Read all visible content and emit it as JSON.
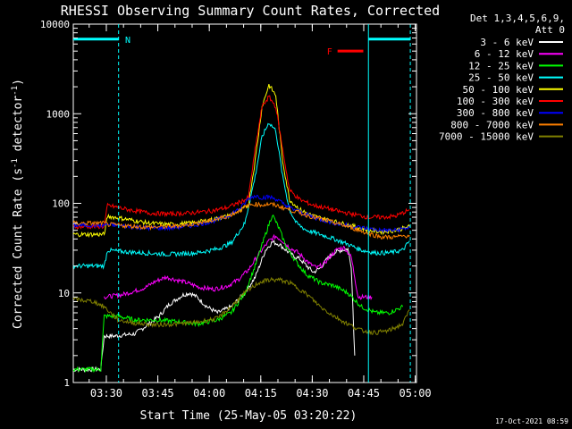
{
  "chart_data": {
    "type": "line",
    "title": "RHESSI Observing Summary Count Rates, Corrected",
    "xlabel": "Start Time (25-May-05 03:20:22)",
    "ylabel_main": "Corrected Count Rate (s",
    "ylabel_sup1": "-1",
    "ylabel_mid": " detector",
    "ylabel_sup2": "-1",
    "ylabel_end": ")",
    "footer_date": "17-Oct-2021 08:59",
    "y_scale": "log",
    "ylim": [
      1,
      10000
    ],
    "xlim_minutes": [
      0,
      100
    ],
    "x_ticks": [
      {
        "label": "03:30",
        "minutes": 9.63
      },
      {
        "label": "03:45",
        "minutes": 24.63
      },
      {
        "label": "04:00",
        "minutes": 39.63
      },
      {
        "label": "04:15",
        "minutes": 54.63
      },
      {
        "label": "04:30",
        "minutes": 69.63
      },
      {
        "label": "04:45",
        "minutes": 84.63
      },
      {
        "label": "05:00",
        "minutes": 99.63
      }
    ],
    "y_ticks": [
      {
        "label": "1",
        "value": 1
      },
      {
        "label": "10",
        "value": 10
      },
      {
        "label": "100",
        "value": 100
      },
      {
        "label": "1000",
        "value": 1000
      },
      {
        "label": "10000",
        "value": 10000
      }
    ],
    "legend": {
      "header_line1": "Det 1,3,4,5,6,9,",
      "header_line2": "Att 0",
      "placement": "right"
    },
    "annotations": {
      "n_label": "N",
      "f_label": "F",
      "cyan_color": "#00ffff",
      "flare_color": "#ff0000"
    },
    "series": [
      {
        "name": "3 - 6 keV",
        "color": "#ffffff",
        "points": [
          [
            0,
            1.4
          ],
          [
            8,
            1.4
          ],
          [
            9,
            3.3
          ],
          [
            12,
            3.3
          ],
          [
            18,
            3.5
          ],
          [
            22,
            4.5
          ],
          [
            25,
            5.5
          ],
          [
            28,
            7.5
          ],
          [
            32,
            9.5
          ],
          [
            34,
            10
          ],
          [
            36,
            9
          ],
          [
            39,
            7
          ],
          [
            42,
            6
          ],
          [
            46,
            7
          ],
          [
            50,
            10
          ],
          [
            53,
            15
          ],
          [
            56,
            30
          ],
          [
            58,
            37
          ],
          [
            60,
            35
          ],
          [
            62,
            30
          ],
          [
            64,
            26
          ],
          [
            66,
            24
          ],
          [
            68,
            20
          ],
          [
            70,
            17
          ],
          [
            72,
            19
          ],
          [
            74,
            24
          ],
          [
            76,
            28
          ],
          [
            78,
            30
          ],
          [
            80,
            31
          ],
          [
            81,
            20
          ],
          [
            82,
            2
          ]
        ]
      },
      {
        "name": "6 - 12 keV",
        "color": "#ff00ff",
        "points": [
          [
            9,
            9
          ],
          [
            14,
            9.5
          ],
          [
            18,
            10.5
          ],
          [
            21,
            11.5
          ],
          [
            24,
            13.5
          ],
          [
            27,
            15
          ],
          [
            30,
            14
          ],
          [
            33,
            13
          ],
          [
            37,
            11.5
          ],
          [
            41,
            11
          ],
          [
            45,
            12
          ],
          [
            48,
            14
          ],
          [
            51,
            18
          ],
          [
            54,
            27
          ],
          [
            57,
            38
          ],
          [
            59,
            43
          ],
          [
            61,
            38
          ],
          [
            63,
            32
          ],
          [
            65,
            29
          ],
          [
            67,
            25
          ],
          [
            69,
            21
          ],
          [
            71,
            19
          ],
          [
            73,
            21
          ],
          [
            75,
            26
          ],
          [
            77,
            31
          ],
          [
            79,
            32
          ],
          [
            81,
            25
          ],
          [
            82,
            15
          ],
          [
            83,
            9
          ],
          [
            87,
            9
          ]
        ]
      },
      {
        "name": "12 - 25 keV",
        "color": "#00ff00",
        "points": [
          [
            0,
            1.4
          ],
          [
            8,
            1.4
          ],
          [
            9,
            5.5
          ],
          [
            13,
            5.5
          ],
          [
            18,
            5
          ],
          [
            24,
            5
          ],
          [
            30,
            4.8
          ],
          [
            36,
            4.5
          ],
          [
            42,
            5
          ],
          [
            46,
            6
          ],
          [
            50,
            10
          ],
          [
            53,
            20
          ],
          [
            56,
            45
          ],
          [
            58,
            75
          ],
          [
            60,
            52
          ],
          [
            62,
            33
          ],
          [
            65,
            22
          ],
          [
            68,
            16
          ],
          [
            72,
            13
          ],
          [
            76,
            12
          ],
          [
            80,
            10
          ],
          [
            84,
            7
          ],
          [
            88,
            6
          ],
          [
            92,
            6
          ],
          [
            96,
            7
          ]
        ]
      },
      {
        "name": "25 - 50 keV",
        "color": "#00ffff",
        "points": [
          [
            0,
            20
          ],
          [
            9,
            20
          ],
          [
            10,
            30
          ],
          [
            14,
            29
          ],
          [
            20,
            28
          ],
          [
            28,
            27
          ],
          [
            36,
            28
          ],
          [
            42,
            31
          ],
          [
            46,
            36
          ],
          [
            50,
            60
          ],
          [
            53,
            200
          ],
          [
            55,
            550
          ],
          [
            57,
            800
          ],
          [
            59,
            650
          ],
          [
            61,
            200
          ],
          [
            63,
            85
          ],
          [
            65,
            60
          ],
          [
            68,
            50
          ],
          [
            72,
            45
          ],
          [
            76,
            40
          ],
          [
            80,
            35
          ],
          [
            84,
            30
          ],
          [
            88,
            28
          ],
          [
            92,
            28
          ],
          [
            96,
            30
          ],
          [
            98,
            38
          ]
        ]
      },
      {
        "name": "50 - 100 keV",
        "color": "#ffff00",
        "points": [
          [
            0,
            45
          ],
          [
            9,
            45
          ],
          [
            10,
            72
          ],
          [
            16,
            66
          ],
          [
            22,
            60
          ],
          [
            28,
            58
          ],
          [
            34,
            60
          ],
          [
            40,
            65
          ],
          [
            45,
            72
          ],
          [
            49,
            85
          ],
          [
            51,
            95
          ],
          [
            53,
            300
          ],
          [
            55,
            1200
          ],
          [
            57,
            2100
          ],
          [
            59,
            1600
          ],
          [
            61,
            300
          ],
          [
            63,
            110
          ],
          [
            66,
            85
          ],
          [
            70,
            72
          ],
          [
            74,
            66
          ],
          [
            78,
            60
          ],
          [
            82,
            55
          ],
          [
            86,
            50
          ],
          [
            90,
            48
          ],
          [
            94,
            50
          ],
          [
            98,
            55
          ]
        ]
      },
      {
        "name": "100 - 300 keV",
        "color": "#ff0000",
        "points": [
          [
            0,
            55
          ],
          [
            9,
            55
          ],
          [
            10,
            95
          ],
          [
            16,
            85
          ],
          [
            22,
            78
          ],
          [
            28,
            76
          ],
          [
            34,
            78
          ],
          [
            40,
            82
          ],
          [
            45,
            90
          ],
          [
            49,
            105
          ],
          [
            51,
            115
          ],
          [
            53,
            400
          ],
          [
            55,
            1200
          ],
          [
            57,
            1550
          ],
          [
            59,
            1200
          ],
          [
            61,
            400
          ],
          [
            63,
            140
          ],
          [
            66,
            110
          ],
          [
            70,
            95
          ],
          [
            74,
            88
          ],
          [
            78,
            80
          ],
          [
            82,
            75
          ],
          [
            86,
            70
          ],
          [
            90,
            70
          ],
          [
            94,
            72
          ],
          [
            98,
            85
          ]
        ]
      },
      {
        "name": "300 - 800 keV",
        "color": "#0000ff",
        "points": [
          [
            0,
            57
          ],
          [
            9,
            57
          ],
          [
            10,
            58
          ],
          [
            16,
            55
          ],
          [
            22,
            53
          ],
          [
            28,
            53
          ],
          [
            34,
            56
          ],
          [
            40,
            62
          ],
          [
            45,
            72
          ],
          [
            49,
            90
          ],
          [
            51,
            112
          ],
          [
            53,
            122
          ],
          [
            55,
            116
          ],
          [
            57,
            118
          ],
          [
            59,
            112
          ],
          [
            61,
            100
          ],
          [
            63,
            90
          ],
          [
            66,
            80
          ],
          [
            70,
            70
          ],
          [
            74,
            63
          ],
          [
            78,
            58
          ],
          [
            82,
            55
          ],
          [
            86,
            52
          ],
          [
            90,
            50
          ],
          [
            94,
            50
          ],
          [
            98,
            54
          ]
        ]
      },
      {
        "name": "800 - 7000 keV",
        "color": "#ff8000",
        "points": [
          [
            0,
            60
          ],
          [
            9,
            60
          ],
          [
            10,
            58
          ],
          [
            16,
            56
          ],
          [
            22,
            54
          ],
          [
            28,
            55
          ],
          [
            34,
            58
          ],
          [
            40,
            64
          ],
          [
            45,
            72
          ],
          [
            49,
            85
          ],
          [
            51,
            95
          ],
          [
            53,
            98
          ],
          [
            55,
            96
          ],
          [
            57,
            98
          ],
          [
            59,
            95
          ],
          [
            61,
            90
          ],
          [
            63,
            85
          ],
          [
            66,
            78
          ],
          [
            70,
            70
          ],
          [
            74,
            64
          ],
          [
            78,
            58
          ],
          [
            82,
            52
          ],
          [
            86,
            46
          ],
          [
            90,
            42
          ],
          [
            94,
            42
          ],
          [
            98,
            44
          ]
        ]
      },
      {
        "name": "7000 - 15000 keV",
        "color": "#808000",
        "points": [
          [
            0,
            8.5
          ],
          [
            6,
            8
          ],
          [
            9,
            7
          ],
          [
            13,
            5
          ],
          [
            18,
            4.6
          ],
          [
            24,
            4.4
          ],
          [
            30,
            4.5
          ],
          [
            36,
            4.7
          ],
          [
            42,
            5.2
          ],
          [
            46,
            7
          ],
          [
            50,
            10
          ],
          [
            54,
            13
          ],
          [
            57,
            14
          ],
          [
            60,
            14
          ],
          [
            63,
            13
          ],
          [
            66,
            11
          ],
          [
            69,
            9
          ],
          [
            72,
            7
          ],
          [
            76,
            5.5
          ],
          [
            80,
            4.5
          ],
          [
            84,
            3.8
          ],
          [
            88,
            3.6
          ],
          [
            92,
            3.8
          ],
          [
            96,
            4.5
          ],
          [
            98,
            6.5
          ]
        ]
      }
    ]
  }
}
